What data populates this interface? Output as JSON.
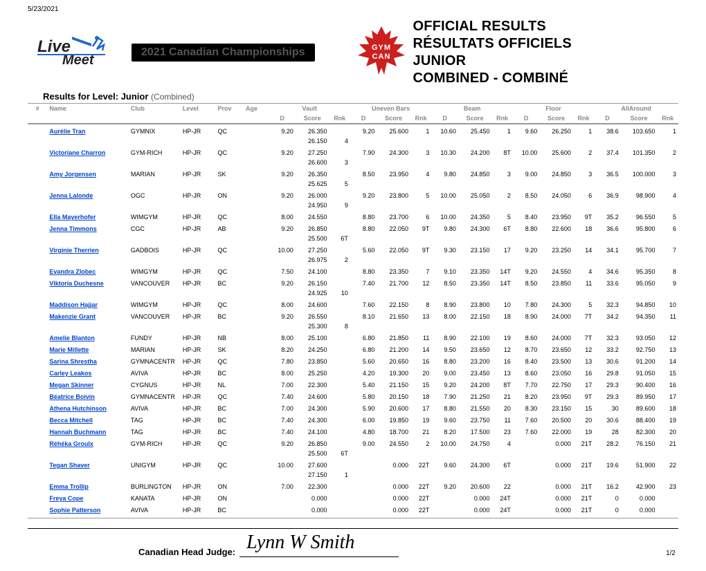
{
  "date": "5/23/2021",
  "banner": "2021 Canadian Championships",
  "logo_text1": "Live",
  "logo_text2": "Meet",
  "leaf_text1": "GYM",
  "leaf_text2": "CAN",
  "title_lines": [
    "OFFICIAL RESULTS",
    "RÉSULTATS OFFICIELS",
    "JUNIOR",
    "COMBINED - COMBINÉ"
  ],
  "results_for_prefix": "Results for Level: Junior ",
  "results_for_suffix": "(Combined)",
  "column_groups": [
    "Vault",
    "Uneven Bars",
    "Beam",
    "Floor",
    "AllAround"
  ],
  "columns": {
    "num": "#",
    "name": "Name",
    "club": "Club",
    "level": "Level",
    "prov": "Prov",
    "age": "Age",
    "d": "D",
    "score": "Score",
    "rnk": "Rnk"
  },
  "judge_label": "Canadian Head Judge:",
  "signature": "Lynn W Smith",
  "page_number": "1/2",
  "colors": {
    "link": "#0044cc",
    "header_grey": "#888888",
    "leaf": "#cc1f1f"
  },
  "rows": [
    {
      "name": "Aurélie Tran",
      "club": "GYMNIX",
      "level": "HP-JR",
      "prov": "QC",
      "vault": {
        "d": "9.20",
        "scores": [
          "26.350",
          "26.150"
        ],
        "rnk": "4"
      },
      "bars": {
        "d": "9.20",
        "score": "25.600",
        "rnk": "1"
      },
      "beam": {
        "d": "10.60",
        "score": "25.450",
        "rnk": "1"
      },
      "floor": {
        "d": "9.60",
        "score": "26.250",
        "rnk": "1"
      },
      "aa": {
        "d": "38.6",
        "score": "103.650",
        "rnk": "1"
      }
    },
    {
      "name": "Victoriane Charron",
      "club": "GYM-RICH",
      "level": "HP-JR",
      "prov": "QC",
      "vault": {
        "d": "9.20",
        "scores": [
          "27.250",
          "26.600"
        ],
        "rnk": "3"
      },
      "bars": {
        "d": "7.90",
        "score": "24.300",
        "rnk": "3"
      },
      "beam": {
        "d": "10.30",
        "score": "24.200",
        "rnk": "8T"
      },
      "floor": {
        "d": "10.00",
        "score": "25.600",
        "rnk": "2"
      },
      "aa": {
        "d": "37.4",
        "score": "101.350",
        "rnk": "2"
      }
    },
    {
      "name": "Amy Jorgensen",
      "club": "MARIAN",
      "level": "HP-JR",
      "prov": "SK",
      "vault": {
        "d": "9.20",
        "scores": [
          "26.350",
          "25.625"
        ],
        "rnk": "5"
      },
      "bars": {
        "d": "8.50",
        "score": "23.950",
        "rnk": "4"
      },
      "beam": {
        "d": "9.80",
        "score": "24.850",
        "rnk": "3"
      },
      "floor": {
        "d": "9.00",
        "score": "24.850",
        "rnk": "3"
      },
      "aa": {
        "d": "36.5",
        "score": "100.000",
        "rnk": "3"
      }
    },
    {
      "name": "Jenna Lalonde",
      "club": "OGC",
      "level": "HP-JR",
      "prov": "ON",
      "vault": {
        "d": "9.20",
        "scores": [
          "26.000",
          "24.950"
        ],
        "rnk": "9"
      },
      "bars": {
        "d": "9.20",
        "score": "23.800",
        "rnk": "5"
      },
      "beam": {
        "d": "10.00",
        "score": "25.050",
        "rnk": "2"
      },
      "floor": {
        "d": "8.50",
        "score": "24.050",
        "rnk": "6"
      },
      "aa": {
        "d": "36.9",
        "score": "98.900",
        "rnk": "4"
      }
    },
    {
      "name": "Ella Mayerhofer",
      "club": "WIMGYM",
      "level": "HP-JR",
      "prov": "QC",
      "vault": {
        "d": "8.00",
        "scores": [
          "24.550"
        ],
        "rnk": ""
      },
      "bars": {
        "d": "8.80",
        "score": "23.700",
        "rnk": "6"
      },
      "beam": {
        "d": "10.00",
        "score": "24.350",
        "rnk": "5"
      },
      "floor": {
        "d": "8.40",
        "score": "23.950",
        "rnk": "9T"
      },
      "aa": {
        "d": "35.2",
        "score": "96.550",
        "rnk": "5"
      }
    },
    {
      "name": "Jenna Timmons",
      "club": "CGC",
      "level": "HP-JR",
      "prov": "AB",
      "vault": {
        "d": "9.20",
        "scores": [
          "26.850",
          "25.500"
        ],
        "rnk": "6T"
      },
      "bars": {
        "d": "8.80",
        "score": "22.050",
        "rnk": "9T"
      },
      "beam": {
        "d": "9.80",
        "score": "24.300",
        "rnk": "6T"
      },
      "floor": {
        "d": "8.80",
        "score": "22.600",
        "rnk": "18"
      },
      "aa": {
        "d": "36.6",
        "score": "95.800",
        "rnk": "6"
      }
    },
    {
      "name": "Virginie Therrien",
      "club": "GADBOIS",
      "level": "HP-JR",
      "prov": "QC",
      "vault": {
        "d": "10.00",
        "scores": [
          "27.250",
          "26.975"
        ],
        "rnk": "2"
      },
      "bars": {
        "d": "5.60",
        "score": "22.050",
        "rnk": "9T"
      },
      "beam": {
        "d": "9.30",
        "score": "23.150",
        "rnk": "17"
      },
      "floor": {
        "d": "9.20",
        "score": "23.250",
        "rnk": "14"
      },
      "aa": {
        "d": "34.1",
        "score": "95.700",
        "rnk": "7"
      }
    },
    {
      "name": "Evandra Zlobec",
      "club": "WIMGYM",
      "level": "HP-JR",
      "prov": "QC",
      "vault": {
        "d": "7.50",
        "scores": [
          "24.100"
        ],
        "rnk": ""
      },
      "bars": {
        "d": "8.80",
        "score": "23.350",
        "rnk": "7"
      },
      "beam": {
        "d": "9.10",
        "score": "23.350",
        "rnk": "14T"
      },
      "floor": {
        "d": "9.20",
        "score": "24.550",
        "rnk": "4"
      },
      "aa": {
        "d": "34.6",
        "score": "95.350",
        "rnk": "8"
      }
    },
    {
      "name": "Viktoria Duchesne",
      "club": "VANCOUVER",
      "level": "HP-JR",
      "prov": "BC",
      "vault": {
        "d": "9.20",
        "scores": [
          "26.150",
          "24.925"
        ],
        "rnk": "10"
      },
      "bars": {
        "d": "7.40",
        "score": "21.700",
        "rnk": "12"
      },
      "beam": {
        "d": "8.50",
        "score": "23.350",
        "rnk": "14T"
      },
      "floor": {
        "d": "8.50",
        "score": "23.850",
        "rnk": "11"
      },
      "aa": {
        "d": "33.6",
        "score": "95.050",
        "rnk": "9"
      }
    },
    {
      "name": "Maddison Hajjar",
      "club": "WIMGYM",
      "level": "HP-JR",
      "prov": "QC",
      "vault": {
        "d": "8.00",
        "scores": [
          "24.600"
        ],
        "rnk": ""
      },
      "bars": {
        "d": "7.60",
        "score": "22.150",
        "rnk": "8"
      },
      "beam": {
        "d": "8.90",
        "score": "23.800",
        "rnk": "10"
      },
      "floor": {
        "d": "7.80",
        "score": "24.300",
        "rnk": "5"
      },
      "aa": {
        "d": "32.3",
        "score": "94.850",
        "rnk": "10"
      }
    },
    {
      "name": "Makenzie Grant",
      "club": "VANCOUVER",
      "level": "HP-JR",
      "prov": "BC",
      "vault": {
        "d": "9.20",
        "scores": [
          "26.550",
          "25.300"
        ],
        "rnk": "8"
      },
      "bars": {
        "d": "8.10",
        "score": "21.650",
        "rnk": "13"
      },
      "beam": {
        "d": "8.00",
        "score": "22.150",
        "rnk": "18"
      },
      "floor": {
        "d": "8.90",
        "score": "24.000",
        "rnk": "7T"
      },
      "aa": {
        "d": "34.2",
        "score": "94.350",
        "rnk": "11"
      }
    },
    {
      "name": "Amelie Blanton",
      "club": "FUNDY",
      "level": "HP-JR",
      "prov": "NB",
      "vault": {
        "d": "8.00",
        "scores": [
          "25.100"
        ],
        "rnk": ""
      },
      "bars": {
        "d": "6.80",
        "score": "21.850",
        "rnk": "11"
      },
      "beam": {
        "d": "8.90",
        "score": "22.100",
        "rnk": "19"
      },
      "floor": {
        "d": "8.60",
        "score": "24.000",
        "rnk": "7T"
      },
      "aa": {
        "d": "32.3",
        "score": "93.050",
        "rnk": "12"
      }
    },
    {
      "name": "Marie Millette",
      "club": "MARIAN",
      "level": "HP-JR",
      "prov": "SK",
      "vault": {
        "d": "8.20",
        "scores": [
          "24.250"
        ],
        "rnk": ""
      },
      "bars": {
        "d": "6.80",
        "score": "21.200",
        "rnk": "14"
      },
      "beam": {
        "d": "9.50",
        "score": "23.650",
        "rnk": "12"
      },
      "floor": {
        "d": "8.70",
        "score": "23.650",
        "rnk": "12"
      },
      "aa": {
        "d": "33.2",
        "score": "92.750",
        "rnk": "13"
      }
    },
    {
      "name": "Sarina Shrestha",
      "club": "GYMNACENTR",
      "level": "HP-JR",
      "prov": "QC",
      "vault": {
        "d": "7.80",
        "scores": [
          "23.850"
        ],
        "rnk": ""
      },
      "bars": {
        "d": "5.60",
        "score": "20.650",
        "rnk": "16"
      },
      "beam": {
        "d": "8.80",
        "score": "23.200",
        "rnk": "16"
      },
      "floor": {
        "d": "8.40",
        "score": "23.500",
        "rnk": "13"
      },
      "aa": {
        "d": "30.6",
        "score": "91.200",
        "rnk": "14"
      }
    },
    {
      "name": "Carley Leakos",
      "club": "AVIVA",
      "level": "HP-JR",
      "prov": "BC",
      "vault": {
        "d": "8.00",
        "scores": [
          "25.250"
        ],
        "rnk": ""
      },
      "bars": {
        "d": "4.20",
        "score": "19.300",
        "rnk": "20"
      },
      "beam": {
        "d": "9.00",
        "score": "23.450",
        "rnk": "13"
      },
      "floor": {
        "d": "8.60",
        "score": "23.050",
        "rnk": "16"
      },
      "aa": {
        "d": "29.8",
        "score": "91.050",
        "rnk": "15"
      }
    },
    {
      "name": "Megan Skinner",
      "club": "CYGNUS",
      "level": "HP-JR",
      "prov": "NL",
      "vault": {
        "d": "7.00",
        "scores": [
          "22.300"
        ],
        "rnk": ""
      },
      "bars": {
        "d": "5.40",
        "score": "21.150",
        "rnk": "15"
      },
      "beam": {
        "d": "9.20",
        "score": "24.200",
        "rnk": "8T"
      },
      "floor": {
        "d": "7.70",
        "score": "22.750",
        "rnk": "17"
      },
      "aa": {
        "d": "29.3",
        "score": "90.400",
        "rnk": "16"
      }
    },
    {
      "name": "Béatrice Boivin",
      "club": "GYMNACENTR",
      "level": "HP-JR",
      "prov": "QC",
      "vault": {
        "d": "7.40",
        "scores": [
          "24.600"
        ],
        "rnk": ""
      },
      "bars": {
        "d": "5.80",
        "score": "20.150",
        "rnk": "18"
      },
      "beam": {
        "d": "7.90",
        "score": "21.250",
        "rnk": "21"
      },
      "floor": {
        "d": "8.20",
        "score": "23.950",
        "rnk": "9T"
      },
      "aa": {
        "d": "29.3",
        "score": "89.950",
        "rnk": "17"
      }
    },
    {
      "name": "Athena Hutchinson",
      "club": "AVIVA",
      "level": "HP-JR",
      "prov": "BC",
      "vault": {
        "d": "7.00",
        "scores": [
          "24.300"
        ],
        "rnk": ""
      },
      "bars": {
        "d": "5.90",
        "score": "20.600",
        "rnk": "17"
      },
      "beam": {
        "d": "8.80",
        "score": "21.550",
        "rnk": "20"
      },
      "floor": {
        "d": "8.30",
        "score": "23.150",
        "rnk": "15"
      },
      "aa": {
        "d": "30",
        "score": "89.600",
        "rnk": "18"
      }
    },
    {
      "name": "Becca Mitchell",
      "club": "TAG",
      "level": "HP-JR",
      "prov": "BC",
      "vault": {
        "d": "7.40",
        "scores": [
          "24.300"
        ],
        "rnk": ""
      },
      "bars": {
        "d": "6.00",
        "score": "19.850",
        "rnk": "19"
      },
      "beam": {
        "d": "9.60",
        "score": "23.750",
        "rnk": "11"
      },
      "floor": {
        "d": "7.60",
        "score": "20.500",
        "rnk": "20"
      },
      "aa": {
        "d": "30.6",
        "score": "88.400",
        "rnk": "19"
      }
    },
    {
      "name": "Hannah Buchmann",
      "club": "TAG",
      "level": "HP-JR",
      "prov": "BC",
      "vault": {
        "d": "7.40",
        "scores": [
          "24.100"
        ],
        "rnk": ""
      },
      "bars": {
        "d": "4.80",
        "score": "18.700",
        "rnk": "21"
      },
      "beam": {
        "d": "8.20",
        "score": "17.500",
        "rnk": "23"
      },
      "floor": {
        "d": "7.60",
        "score": "22.000",
        "rnk": "19"
      },
      "aa": {
        "d": "28",
        "score": "82.300",
        "rnk": "20"
      }
    },
    {
      "name": "Réhéka Groulx",
      "club": "GYM-RICH",
      "level": "HP-JR",
      "prov": "QC",
      "vault": {
        "d": "9.20",
        "scores": [
          "26.850",
          "25.500"
        ],
        "rnk": "6T"
      },
      "bars": {
        "d": "9.00",
        "score": "24.550",
        "rnk": "2"
      },
      "beam": {
        "d": "10.00",
        "score": "24.750",
        "rnk": "4"
      },
      "floor": {
        "d": "",
        "score": "0.000",
        "rnk": "21T"
      },
      "aa": {
        "d": "28.2",
        "score": "76.150",
        "rnk": "21"
      }
    },
    {
      "name": "Tegan Shaver",
      "club": "UNIGYM",
      "level": "HP-JR",
      "prov": "QC",
      "vault": {
        "d": "10.00",
        "scores": [
          "27.600",
          "27.150"
        ],
        "rnk": "1"
      },
      "bars": {
        "d": "",
        "score": "0.000",
        "rnk": "22T"
      },
      "beam": {
        "d": "9.60",
        "score": "24.300",
        "rnk": "6T"
      },
      "floor": {
        "d": "",
        "score": "0.000",
        "rnk": "21T"
      },
      "aa": {
        "d": "19.6",
        "score": "51.900",
        "rnk": "22"
      }
    },
    {
      "name": "Emma Trollip",
      "club": "BURLINGTON",
      "level": "HP-JR",
      "prov": "ON",
      "vault": {
        "d": "7.00",
        "scores": [
          "22.300"
        ],
        "rnk": ""
      },
      "bars": {
        "d": "",
        "score": "0.000",
        "rnk": "22T"
      },
      "beam": {
        "d": "9.20",
        "score": "20.600",
        "rnk": "22"
      },
      "floor": {
        "d": "",
        "score": "0.000",
        "rnk": "21T"
      },
      "aa": {
        "d": "16.2",
        "score": "42.900",
        "rnk": "23"
      }
    },
    {
      "name": "Freya Cope",
      "club": "KANATA",
      "level": "HP-JR",
      "prov": "ON",
      "vault": {
        "d": "",
        "scores": [
          "0.000"
        ],
        "rnk": ""
      },
      "bars": {
        "d": "",
        "score": "0.000",
        "rnk": "22T"
      },
      "beam": {
        "d": "",
        "score": "0.000",
        "rnk": "24T"
      },
      "floor": {
        "d": "",
        "score": "0.000",
        "rnk": "21T"
      },
      "aa": {
        "d": "0",
        "score": "0.000",
        "rnk": ""
      }
    },
    {
      "name": "Sophie Patterson",
      "club": "AVIVA",
      "level": "HP-JR",
      "prov": "BC",
      "vault": {
        "d": "",
        "scores": [
          "0.000"
        ],
        "rnk": ""
      },
      "bars": {
        "d": "",
        "score": "0.000",
        "rnk": "22T"
      },
      "beam": {
        "d": "",
        "score": "0.000",
        "rnk": "24T"
      },
      "floor": {
        "d": "",
        "score": "0.000",
        "rnk": "21T"
      },
      "aa": {
        "d": "0",
        "score": "0.000",
        "rnk": ""
      }
    }
  ]
}
